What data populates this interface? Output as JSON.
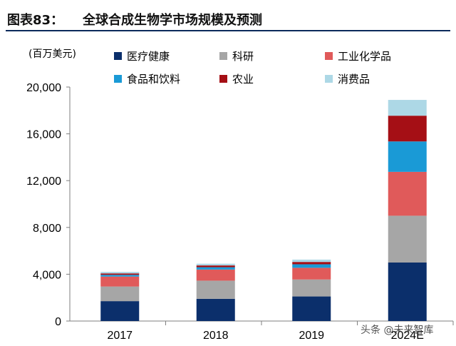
{
  "header": {
    "figure_label": "图表83：",
    "title": "全球合成生物学市场规模及预测"
  },
  "watermark": "头条 @未来智库",
  "chart_data": {
    "type": "bar",
    "stacked": true,
    "unit_label": "(百万美元)",
    "categories": [
      "2017",
      "2018",
      "2019",
      "2024E"
    ],
    "ylim": [
      0,
      20000
    ],
    "yticks": [
      0,
      4000,
      8000,
      12000,
      16000,
      20000
    ],
    "ytick_labels": [
      "0",
      "4,000",
      "8,000",
      "12,000",
      "16,000",
      "20,000"
    ],
    "grid": false,
    "legend_position": "top",
    "series": [
      {
        "name": "医疗健康",
        "color": "#0b2f6b",
        "values": [
          1700,
          1900,
          2100,
          5000
        ]
      },
      {
        "name": "科研",
        "color": "#a6a6a6",
        "values": [
          1250,
          1550,
          1450,
          4000
        ]
      },
      {
        "name": "工业化学品",
        "color": "#e05a5a",
        "values": [
          850,
          950,
          1000,
          3750
        ]
      },
      {
        "name": "食品和饮料",
        "color": "#1a9ad6",
        "values": [
          150,
          200,
          300,
          2600
        ]
      },
      {
        "name": "农业",
        "color": "#a50f15",
        "values": [
          120,
          150,
          200,
          2200
        ]
      },
      {
        "name": "消费品",
        "color": "#add8e6",
        "values": [
          130,
          150,
          200,
          1350
        ]
      }
    ]
  }
}
